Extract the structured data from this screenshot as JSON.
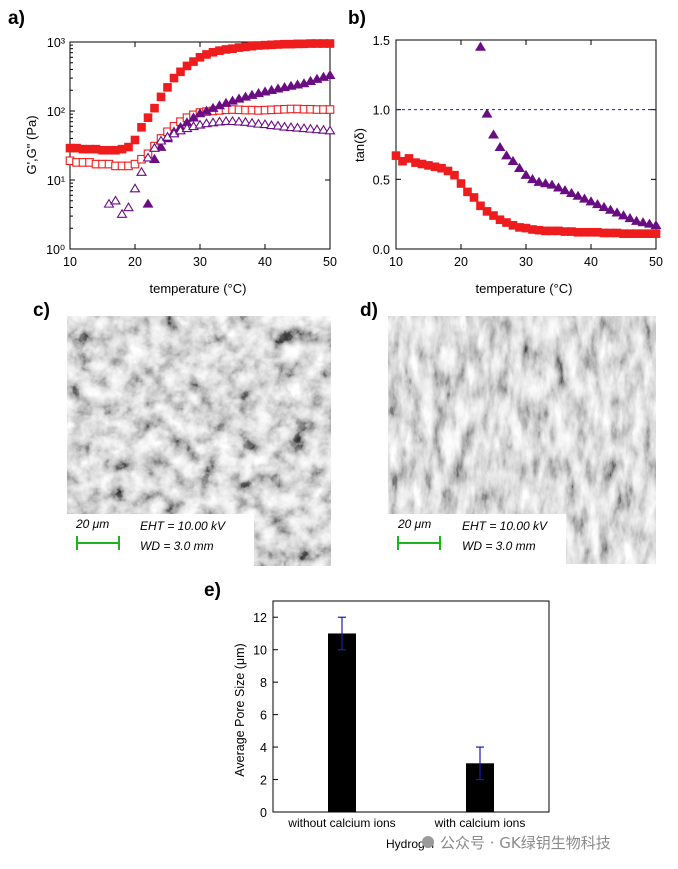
{
  "panels": {
    "a": "a)",
    "b": "b)",
    "c": "c)",
    "d": "d)",
    "e": "e)"
  },
  "sem": {
    "c": {
      "scale": "20 μm",
      "eht": "EHT = 10.00 kV",
      "wd": "WD =  3.0 mm"
    },
    "d": {
      "scale": "20 μm",
      "eht": "EHT = 10.00 kV",
      "wd": "WD =  3.0 mm"
    }
  },
  "watermark": "公众号 · GK绿钥生物科技",
  "colors": {
    "red": "#ee1c1c",
    "purple": "#6a0d83",
    "blue_dash": "#1f1fbf",
    "error_bar": "#1a1ab0"
  },
  "chart_data": [
    {
      "id": "a",
      "type": "scatter",
      "xlabel": "temperature (°C)",
      "ylabel": "G',G\" (Pa)",
      "xlim": [
        10,
        50
      ],
      "ylim": [
        1,
        1000
      ],
      "yscale": "log",
      "xticks": [
        "10",
        "20",
        "30",
        "40",
        "50"
      ],
      "yticks": [
        "10⁰",
        "10¹",
        "10²",
        "10³"
      ],
      "series": [
        {
          "marker": "square-filled",
          "color": "#ee1c1c",
          "x": [
            10,
            11,
            12,
            13,
            14,
            15,
            16,
            17,
            18,
            19,
            20,
            21,
            22,
            23,
            24,
            25,
            26,
            27,
            28,
            29,
            30,
            31,
            32,
            33,
            34,
            35,
            36,
            37,
            38,
            39,
            40,
            41,
            42,
            43,
            44,
            45,
            46,
            47,
            48,
            49,
            50
          ],
          "y": [
            29,
            29,
            28,
            28,
            28,
            27,
            27,
            27,
            28,
            30,
            38,
            58,
            80,
            110,
            160,
            220,
            300,
            370,
            450,
            520,
            600,
            660,
            710,
            750,
            780,
            800,
            830,
            850,
            870,
            890,
            900,
            910,
            920,
            930,
            930,
            940,
            940,
            950,
            950,
            950,
            950
          ]
        },
        {
          "marker": "square-open",
          "color": "#ee1c1c",
          "x": [
            10,
            11,
            12,
            13,
            14,
            15,
            16,
            17,
            18,
            19,
            20,
            21,
            22,
            23,
            24,
            25,
            26,
            27,
            28,
            29,
            30,
            31,
            32,
            33,
            34,
            35,
            36,
            37,
            38,
            39,
            40,
            41,
            42,
            43,
            44,
            45,
            46,
            47,
            48,
            49,
            50
          ],
          "y": [
            19,
            18,
            18,
            18,
            17,
            17,
            17,
            16,
            16,
            16,
            17,
            20,
            24,
            31,
            40,
            50,
            60,
            70,
            80,
            88,
            95,
            98,
            100,
            102,
            104,
            105,
            104,
            103,
            103,
            102,
            103,
            104,
            105,
            106,
            107,
            107,
            106,
            106,
            105,
            105,
            105
          ]
        },
        {
          "marker": "triangle-filled",
          "color": "#6a0d83",
          "x": [
            22,
            23,
            24,
            25,
            26,
            27,
            28,
            29,
            30,
            31,
            32,
            33,
            34,
            35,
            36,
            37,
            38,
            39,
            40,
            41,
            42,
            43,
            44,
            45,
            46,
            47,
            48,
            49,
            50
          ],
          "y": [
            4.5,
            20,
            30,
            40,
            50,
            58,
            68,
            80,
            92,
            100,
            110,
            120,
            130,
            140,
            150,
            160,
            170,
            180,
            190,
            200,
            210,
            220,
            230,
            240,
            250,
            270,
            290,
            310,
            330
          ]
        },
        {
          "marker": "triangle-open",
          "color": "#6a0d83",
          "x": [
            16,
            17,
            18,
            19,
            20,
            21,
            22,
            23,
            24,
            25,
            26,
            27,
            28,
            29,
            30,
            31,
            32,
            33,
            34,
            35,
            36,
            37,
            38,
            39,
            40,
            41,
            42,
            43,
            44,
            45,
            46,
            47,
            48,
            49,
            50
          ],
          "y": [
            4.5,
            5,
            3.2,
            4,
            7.5,
            13,
            21,
            29,
            37,
            42,
            47,
            52,
            56,
            60,
            63,
            66,
            68,
            70,
            71,
            71,
            70,
            69,
            67,
            65,
            64,
            62,
            61,
            59,
            58,
            57,
            56,
            55,
            54,
            53,
            52
          ]
        }
      ]
    },
    {
      "id": "b",
      "type": "scatter",
      "xlabel": "temperature (°C)",
      "ylabel": "tan(δ)",
      "xlim": [
        10,
        50
      ],
      "ylim": [
        0,
        1.5
      ],
      "xticks": [
        "10",
        "20",
        "30",
        "40",
        "50"
      ],
      "yticks": [
        "0.0",
        "0.5",
        "1.0",
        "1.5"
      ],
      "reference_line": 1.0,
      "series": [
        {
          "marker": "square-filled",
          "color": "#ee1c1c",
          "x": [
            10,
            11,
            12,
            13,
            14,
            15,
            16,
            17,
            18,
            19,
            20,
            21,
            22,
            23,
            24,
            25,
            26,
            27,
            28,
            29,
            30,
            31,
            32,
            33,
            34,
            35,
            36,
            37,
            38,
            39,
            40,
            41,
            42,
            43,
            44,
            45,
            46,
            47,
            48,
            49,
            50
          ],
          "y": [
            0.67,
            0.63,
            0.65,
            0.62,
            0.61,
            0.6,
            0.59,
            0.58,
            0.56,
            0.53,
            0.47,
            0.41,
            0.37,
            0.31,
            0.27,
            0.24,
            0.21,
            0.19,
            0.17,
            0.155,
            0.15,
            0.14,
            0.135,
            0.13,
            0.13,
            0.13,
            0.125,
            0.125,
            0.12,
            0.12,
            0.12,
            0.12,
            0.115,
            0.115,
            0.115,
            0.11,
            0.11,
            0.11,
            0.11,
            0.11,
            0.11
          ]
        },
        {
          "marker": "triangle-filled",
          "color": "#6a0d83",
          "x": [
            23,
            24,
            25,
            26,
            27,
            28,
            29,
            30,
            31,
            32,
            33,
            34,
            35,
            36,
            37,
            38,
            39,
            40,
            41,
            42,
            43,
            44,
            45,
            46,
            47,
            48,
            49,
            50
          ],
          "y": [
            1.45,
            0.97,
            0.82,
            0.73,
            0.67,
            0.63,
            0.58,
            0.53,
            0.5,
            0.48,
            0.47,
            0.46,
            0.44,
            0.42,
            0.4,
            0.38,
            0.36,
            0.34,
            0.32,
            0.3,
            0.28,
            0.26,
            0.24,
            0.22,
            0.2,
            0.19,
            0.18,
            0.17
          ]
        }
      ]
    },
    {
      "id": "e",
      "type": "bar",
      "xlabel": "Hydrogel",
      "ylabel": "Average Pore Size (μm)",
      "ylim": [
        0,
        13
      ],
      "yticks": [
        "0",
        "2",
        "4",
        "6",
        "8",
        "10",
        "12"
      ],
      "categories": [
        "without calcium ions",
        "with calcium ions"
      ],
      "values": [
        11,
        3
      ],
      "errors": [
        1,
        1
      ],
      "bar_color": "#000000",
      "error_color": "#1a1ab0"
    }
  ]
}
